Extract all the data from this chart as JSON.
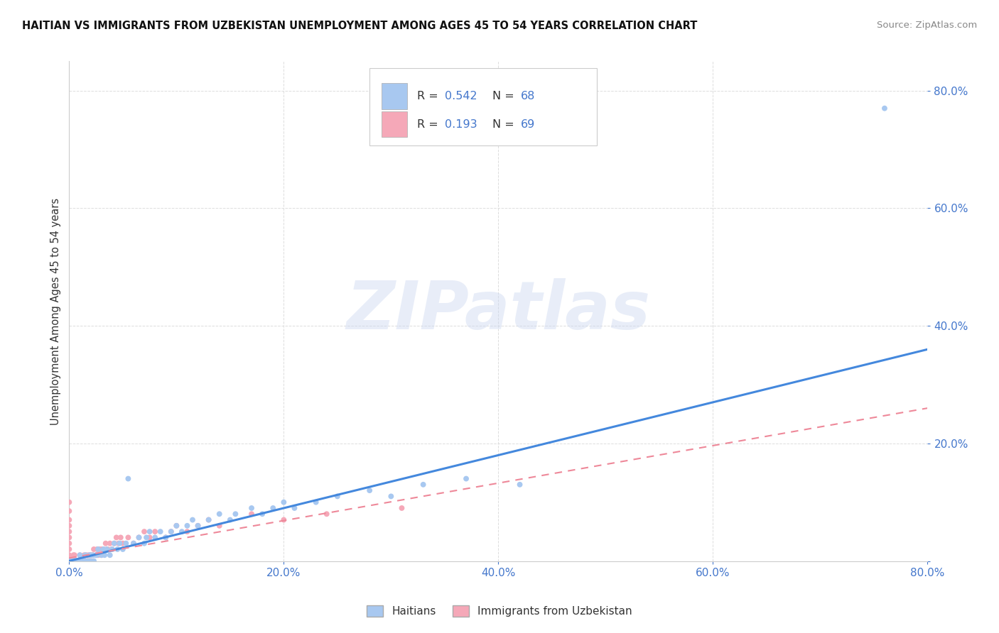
{
  "title": "HAITIAN VS IMMIGRANTS FROM UZBEKISTAN UNEMPLOYMENT AMONG AGES 45 TO 54 YEARS CORRELATION CHART",
  "source": "Source: ZipAtlas.com",
  "ylabel": "Unemployment Among Ages 45 to 54 years",
  "legend_label_1": "Haitians",
  "legend_label_2": "Immigrants from Uzbekistan",
  "R1": 0.542,
  "N1": 68,
  "R2": 0.193,
  "N2": 69,
  "xmin": 0.0,
  "xmax": 0.8,
  "ymin": 0.0,
  "ymax": 0.85,
  "color_1": "#a8c8f0",
  "color_2": "#f5a8b8",
  "line_color_1": "#4488dd",
  "line_color_2": "#ee8899",
  "text_blue": "#4477cc",
  "text_dark": "#333333",
  "grid_color": "#dddddd",
  "bg": "#ffffff",
  "watermark": "ZIPatlas",
  "haitian_scatter": [
    [
      0.0,
      0.0
    ],
    [
      0.002,
      0.0
    ],
    [
      0.003,
      0.0
    ],
    [
      0.004,
      0.0
    ],
    [
      0.005,
      0.0
    ],
    [
      0.006,
      0.0
    ],
    [
      0.007,
      0.0
    ],
    [
      0.008,
      0.0
    ],
    [
      0.009,
      0.0
    ],
    [
      0.01,
      0.0
    ],
    [
      0.01,
      0.01
    ],
    [
      0.012,
      0.0
    ],
    [
      0.013,
      0.0
    ],
    [
      0.015,
      0.0
    ],
    [
      0.015,
      0.01
    ],
    [
      0.017,
      0.0
    ],
    [
      0.018,
      0.0
    ],
    [
      0.019,
      0.01
    ],
    [
      0.02,
      0.0
    ],
    [
      0.02,
      0.01
    ],
    [
      0.022,
      0.01
    ],
    [
      0.023,
      0.0
    ],
    [
      0.025,
      0.01
    ],
    [
      0.026,
      0.01
    ],
    [
      0.027,
      0.02
    ],
    [
      0.03,
      0.01
    ],
    [
      0.032,
      0.02
    ],
    [
      0.033,
      0.01
    ],
    [
      0.035,
      0.02
    ],
    [
      0.038,
      0.01
    ],
    [
      0.04,
      0.02
    ],
    [
      0.042,
      0.03
    ],
    [
      0.045,
      0.02
    ],
    [
      0.047,
      0.03
    ],
    [
      0.05,
      0.02
    ],
    [
      0.053,
      0.03
    ],
    [
      0.055,
      0.14
    ],
    [
      0.06,
      0.03
    ],
    [
      0.065,
      0.04
    ],
    [
      0.07,
      0.03
    ],
    [
      0.072,
      0.04
    ],
    [
      0.075,
      0.05
    ],
    [
      0.08,
      0.04
    ],
    [
      0.085,
      0.05
    ],
    [
      0.09,
      0.04
    ],
    [
      0.095,
      0.05
    ],
    [
      0.1,
      0.06
    ],
    [
      0.105,
      0.05
    ],
    [
      0.11,
      0.06
    ],
    [
      0.115,
      0.07
    ],
    [
      0.12,
      0.06
    ],
    [
      0.13,
      0.07
    ],
    [
      0.14,
      0.08
    ],
    [
      0.15,
      0.07
    ],
    [
      0.155,
      0.08
    ],
    [
      0.17,
      0.09
    ],
    [
      0.18,
      0.08
    ],
    [
      0.19,
      0.09
    ],
    [
      0.2,
      0.1
    ],
    [
      0.21,
      0.09
    ],
    [
      0.23,
      0.1
    ],
    [
      0.25,
      0.11
    ],
    [
      0.28,
      0.12
    ],
    [
      0.3,
      0.11
    ],
    [
      0.33,
      0.13
    ],
    [
      0.37,
      0.14
    ],
    [
      0.42,
      0.13
    ],
    [
      0.76,
      0.77
    ]
  ],
  "uzbek_scatter": [
    [
      0.0,
      0.0
    ],
    [
      0.0,
      0.005
    ],
    [
      0.0,
      0.01
    ],
    [
      0.0,
      0.02
    ],
    [
      0.0,
      0.03
    ],
    [
      0.0,
      0.04
    ],
    [
      0.0,
      0.05
    ],
    [
      0.0,
      0.06
    ],
    [
      0.0,
      0.07
    ],
    [
      0.0,
      0.085
    ],
    [
      0.0,
      0.1
    ],
    [
      0.001,
      0.0
    ],
    [
      0.002,
      0.0
    ],
    [
      0.003,
      0.0
    ],
    [
      0.004,
      0.0
    ],
    [
      0.004,
      0.01
    ],
    [
      0.005,
      0.0
    ],
    [
      0.005,
      0.01
    ],
    [
      0.006,
      0.0
    ],
    [
      0.007,
      0.0
    ],
    [
      0.008,
      0.0
    ],
    [
      0.009,
      0.0
    ],
    [
      0.01,
      0.0
    ],
    [
      0.01,
      0.01
    ],
    [
      0.012,
      0.0
    ],
    [
      0.013,
      0.0
    ],
    [
      0.014,
      0.01
    ],
    [
      0.015,
      0.0
    ],
    [
      0.016,
      0.01
    ],
    [
      0.017,
      0.0
    ],
    [
      0.018,
      0.01
    ],
    [
      0.019,
      0.0
    ],
    [
      0.02,
      0.01
    ],
    [
      0.021,
      0.0
    ],
    [
      0.022,
      0.01
    ],
    [
      0.023,
      0.02
    ],
    [
      0.025,
      0.01
    ],
    [
      0.026,
      0.02
    ],
    [
      0.027,
      0.01
    ],
    [
      0.028,
      0.02
    ],
    [
      0.03,
      0.01
    ],
    [
      0.03,
      0.02
    ],
    [
      0.032,
      0.02
    ],
    [
      0.034,
      0.03
    ],
    [
      0.036,
      0.02
    ],
    [
      0.038,
      0.03
    ],
    [
      0.04,
      0.02
    ],
    [
      0.042,
      0.03
    ],
    [
      0.044,
      0.04
    ],
    [
      0.046,
      0.03
    ],
    [
      0.048,
      0.04
    ],
    [
      0.05,
      0.03
    ],
    [
      0.055,
      0.04
    ],
    [
      0.06,
      0.03
    ],
    [
      0.065,
      0.04
    ],
    [
      0.07,
      0.05
    ],
    [
      0.075,
      0.04
    ],
    [
      0.08,
      0.05
    ],
    [
      0.09,
      0.04
    ],
    [
      0.095,
      0.05
    ],
    [
      0.1,
      0.06
    ],
    [
      0.11,
      0.05
    ],
    [
      0.12,
      0.06
    ],
    [
      0.13,
      0.07
    ],
    [
      0.14,
      0.06
    ],
    [
      0.17,
      0.08
    ],
    [
      0.2,
      0.07
    ],
    [
      0.24,
      0.08
    ],
    [
      0.31,
      0.09
    ]
  ],
  "line1_x_start": 0.0,
  "line1_x_end": 0.8,
  "line1_y_start": 0.0,
  "line1_y_end": 0.36,
  "line2_x_start": 0.0,
  "line2_x_end": 0.8,
  "line2_y_start": 0.005,
  "line2_y_end": 0.26
}
